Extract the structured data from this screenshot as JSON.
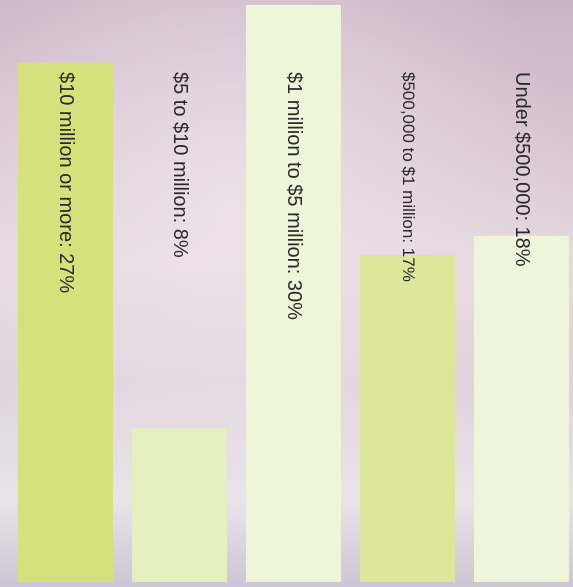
{
  "chart_data": {
    "type": "bar",
    "categories": [
      "$10 million or more: 27%",
      "$5 to $10 million: 8%",
      "$1 million to $5 million: 30%",
      "$500,000 to $1 million: 17%",
      "Under $500,000: 18%"
    ],
    "values": [
      27,
      8,
      30,
      17,
      18
    ],
    "colors": [
      "#d5e27c",
      "#e6efbf",
      "#eef5d8",
      "#dce79a",
      "#eff5da"
    ]
  }
}
